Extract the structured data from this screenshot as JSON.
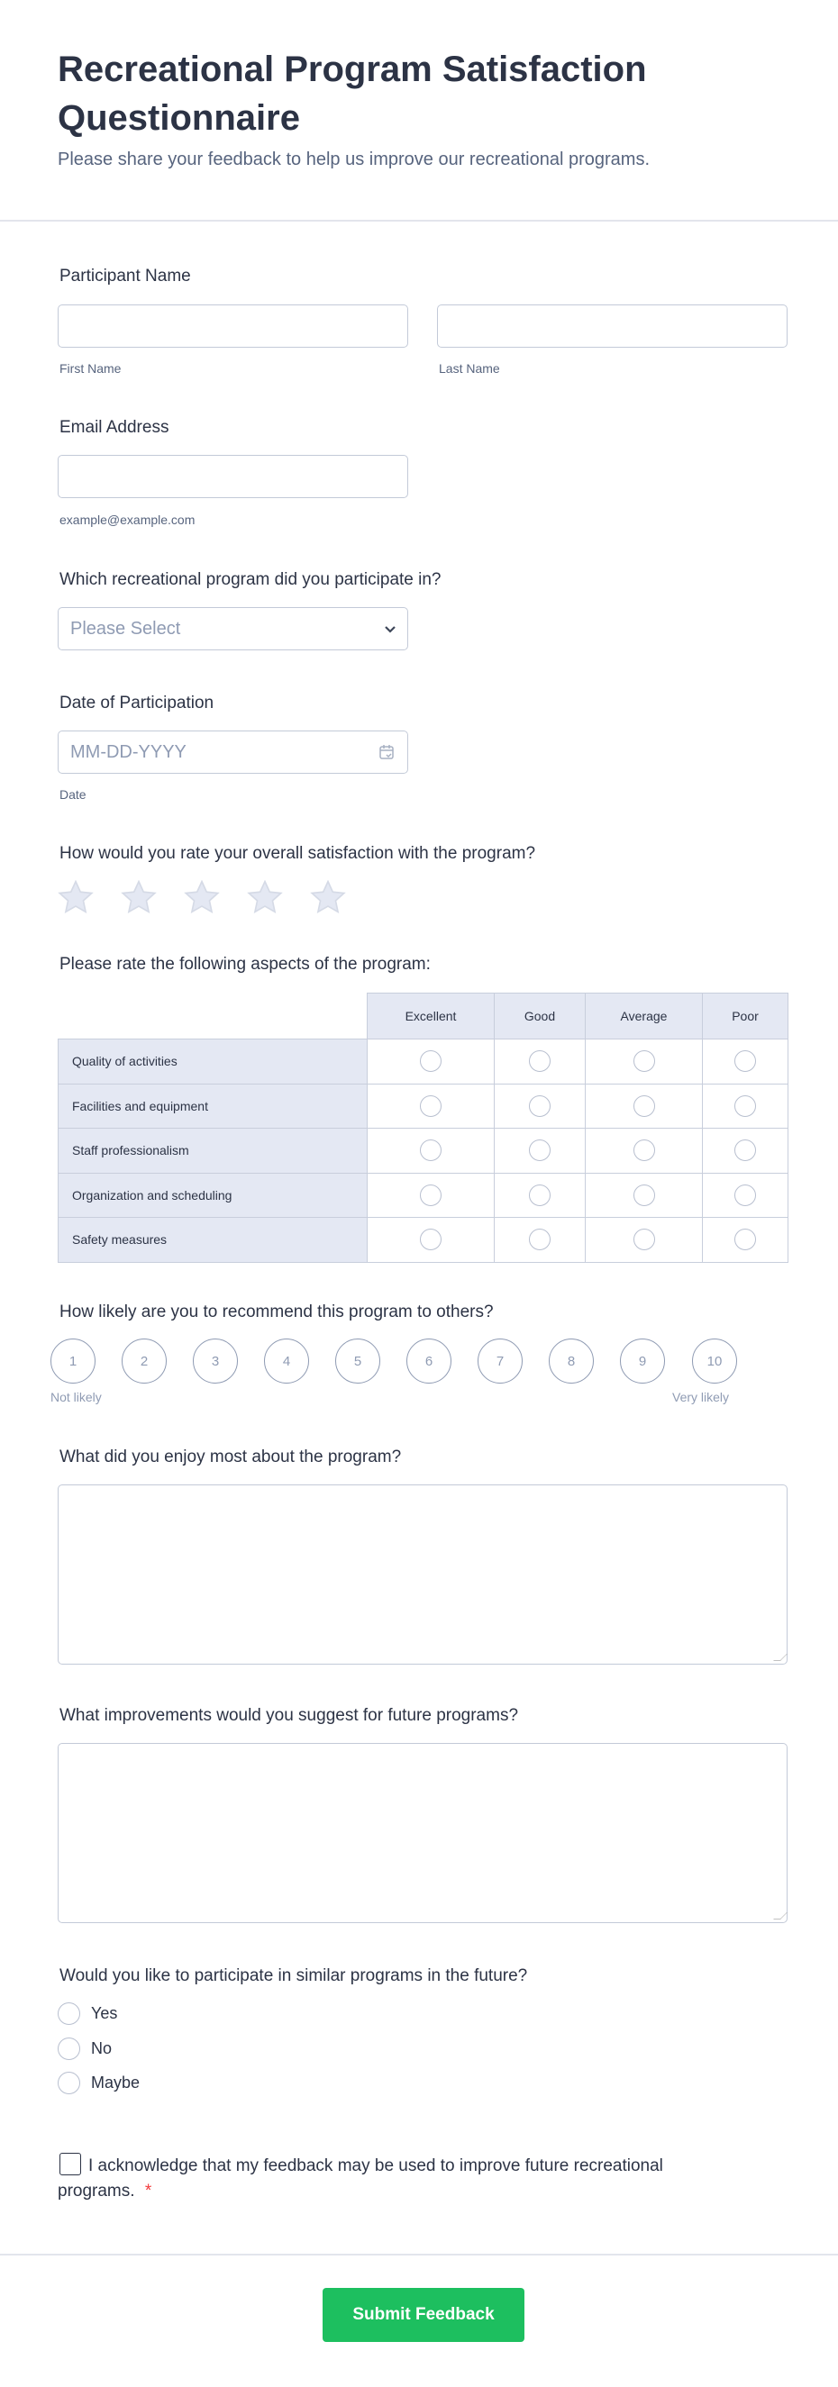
{
  "header": {
    "title": "Recreational Program Satisfaction Questionnaire",
    "subtitle": "Please share your feedback to help us improve our recreational programs."
  },
  "name": {
    "label": "Participant Name",
    "first": "First Name",
    "last": "Last Name",
    "first_value": "",
    "last_value": ""
  },
  "email": {
    "label": "Email Address",
    "hint": "example@example.com",
    "value": ""
  },
  "program": {
    "label": "Which recreational program did you participate in?",
    "placeholder": "Please Select"
  },
  "date": {
    "label": "Date of Participation",
    "placeholder": "MM-DD-YYYY",
    "hint": "Date"
  },
  "satisfaction": {
    "label": "How would you rate your overall satisfaction with the program?",
    "stars": 5,
    "value": 0,
    "star_color": "#e4e8f3"
  },
  "matrix": {
    "label": "Please rate the following aspects of the program:",
    "columns": [
      "Excellent",
      "Good",
      "Average",
      "Poor"
    ],
    "rows": [
      "Quality of activities",
      "Facilities and equipment",
      "Staff professionalism",
      "Organization and scheduling",
      "Safety measures"
    ]
  },
  "recommend": {
    "label": "How likely are you to recommend this program to others?",
    "scale": [
      "1",
      "2",
      "3",
      "4",
      "5",
      "6",
      "7",
      "8",
      "9",
      "10"
    ],
    "low": "Not likely",
    "high": "Very likely"
  },
  "enjoy": {
    "label": "What did you enjoy most about the program?",
    "value": ""
  },
  "improve": {
    "label": "What improvements would you suggest for future programs?",
    "value": ""
  },
  "future": {
    "label": "Would you like to participate in similar programs in the future?",
    "options": [
      "Yes",
      "No",
      "Maybe"
    ]
  },
  "consent": {
    "text": "I acknowledge that my feedback may be used to improve future recreational programs.",
    "required": "*"
  },
  "submit": {
    "label": "Submit Feedback",
    "color": "#1dbf5f"
  }
}
